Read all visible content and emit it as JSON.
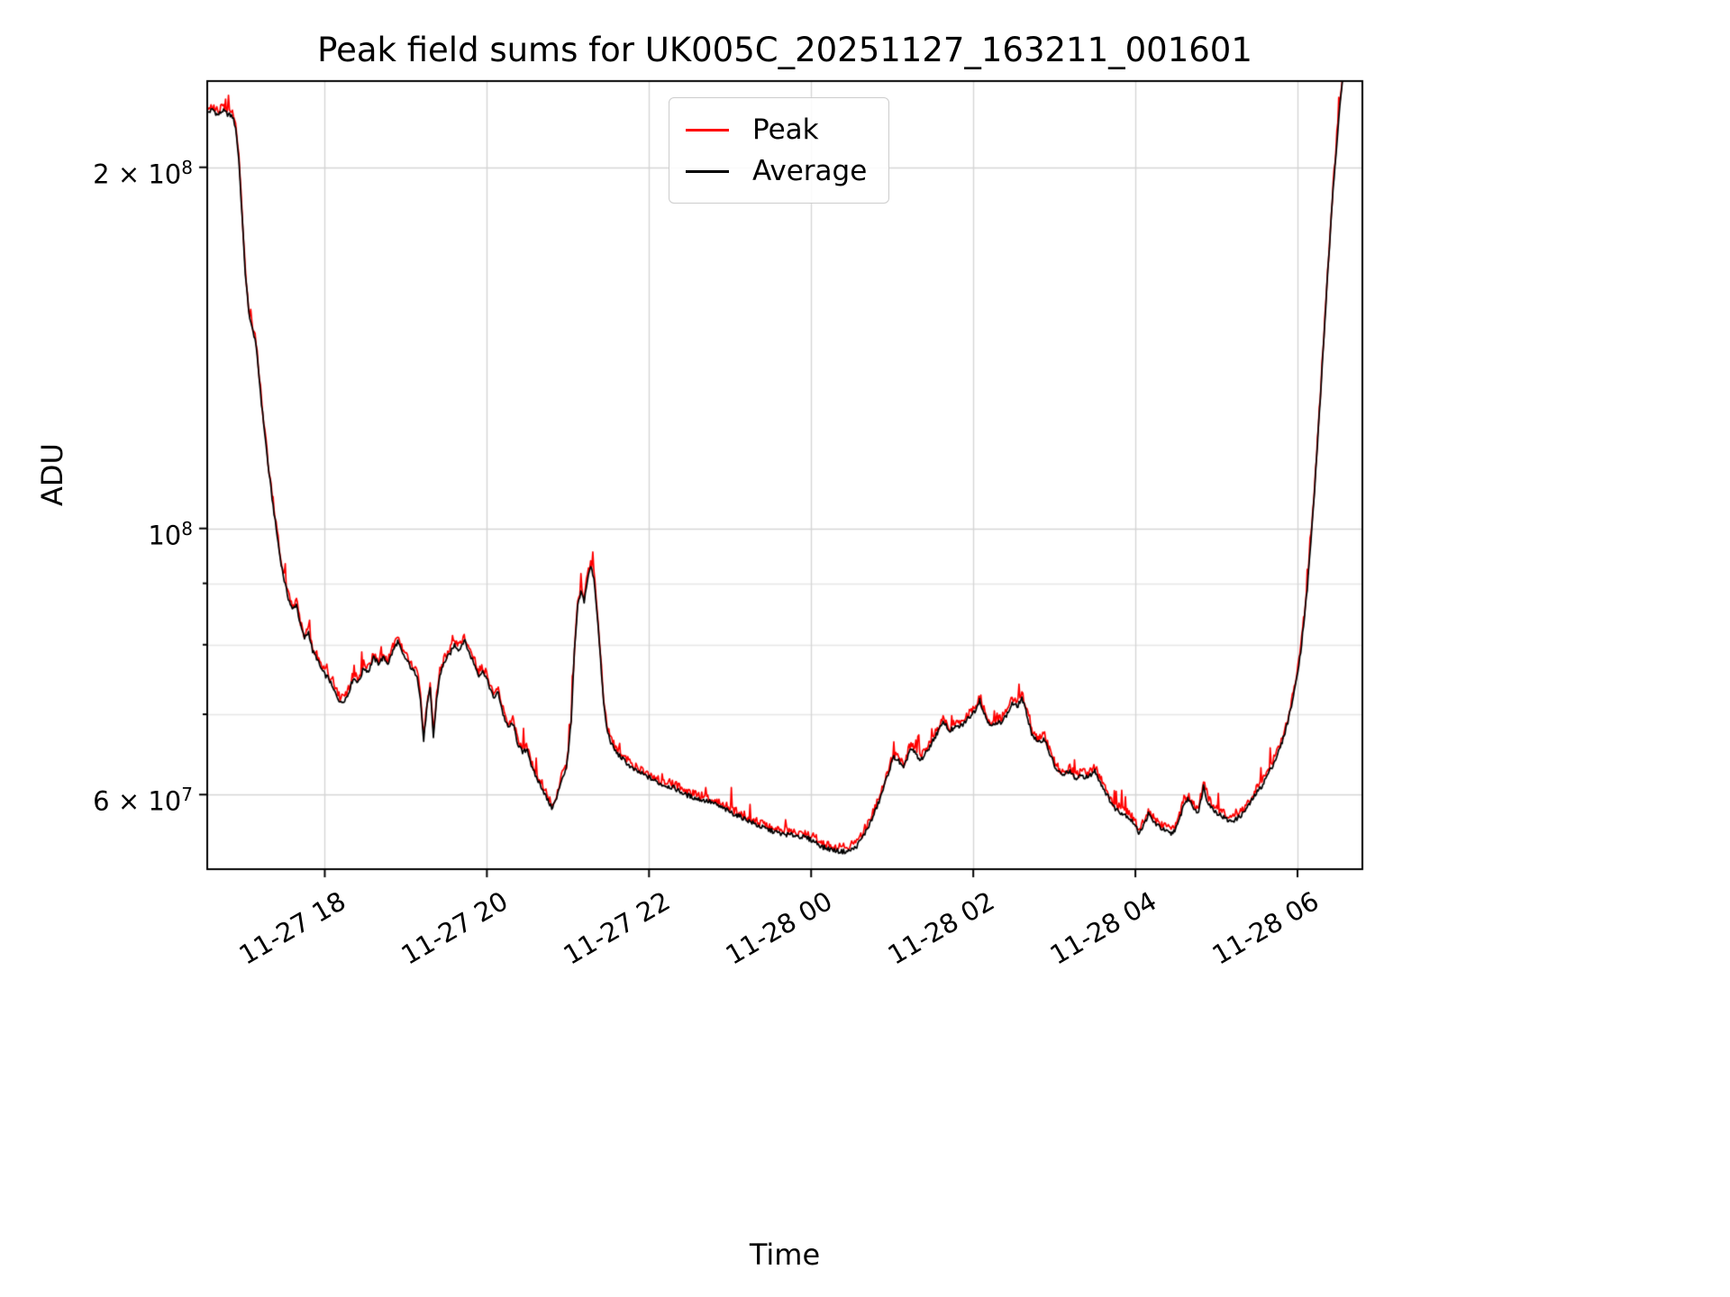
{
  "title": "Peak field sums for UK005C_20251127_163211_001601",
  "axes": {
    "xlabel": "Time",
    "ylabel": "ADU"
  },
  "legend": {
    "position": "upper center",
    "items": [
      {
        "label": "Peak",
        "color": "#ff0000"
      },
      {
        "label": "Average",
        "color": "#000000"
      }
    ]
  },
  "yticks": [
    {
      "value_scaled": 20,
      "text": "2 × 10",
      "sup": "8"
    },
    {
      "value_scaled": 10,
      "text": "10",
      "sup": "8"
    },
    {
      "value_scaled": 6,
      "text": "6 × 10",
      "sup": "7"
    }
  ],
  "xticks": [
    {
      "t": 18,
      "label": "11-27 18"
    },
    {
      "t": 20,
      "label": "11-27 20"
    },
    {
      "t": 22,
      "label": "11-27 22"
    },
    {
      "t": 24,
      "label": "11-28 00"
    },
    {
      "t": 26,
      "label": "11-28 02"
    },
    {
      "t": 28,
      "label": "11-28 04"
    },
    {
      "t": 30,
      "label": "11-28 06"
    }
  ],
  "chart_data": {
    "type": "line",
    "title": "Peak field sums for UK005C_20251127_163211_001601",
    "xlabel": "Time",
    "ylabel": "ADU",
    "yscale": "log",
    "grid": "both",
    "legend_position": "upper center",
    "x_unit": "hours since 2025-11-27 00:00 (tick labels MM-DD HH)",
    "xlim": [
      16.55,
      30.8
    ],
    "ylim": [
      52000000.0,
      236000000.0
    ],
    "values_scale": 10000000.0,
    "values_unit": "ADU (values below are in units of 1e7 ADU)",
    "grid_y_major_scaled": [
      6,
      10,
      20
    ],
    "grid_y_minor_scaled": [
      7,
      8,
      9
    ],
    "x": [
      16.55,
      16.62,
      16.68,
      16.74,
      16.8,
      16.86,
      16.9,
      16.94,
      16.98,
      17.02,
      17.06,
      17.1,
      17.14,
      17.18,
      17.22,
      17.26,
      17.3,
      17.35,
      17.4,
      17.45,
      17.5,
      17.55,
      17.6,
      17.65,
      17.7,
      17.75,
      17.8,
      17.85,
      17.9,
      17.95,
      18.0,
      18.05,
      18.1,
      18.15,
      18.2,
      18.28,
      18.35,
      18.42,
      18.48,
      18.54,
      18.6,
      18.66,
      18.72,
      18.78,
      18.84,
      18.9,
      18.96,
      19.02,
      19.08,
      19.14,
      19.18,
      19.22,
      19.26,
      19.3,
      19.34,
      19.38,
      19.42,
      19.48,
      19.54,
      19.6,
      19.66,
      19.72,
      19.78,
      19.84,
      19.9,
      19.96,
      20.02,
      20.08,
      20.14,
      20.2,
      20.26,
      20.32,
      20.38,
      20.44,
      20.5,
      20.56,
      20.62,
      20.68,
      20.74,
      20.8,
      20.86,
      20.92,
      20.98,
      21.04,
      21.08,
      21.12,
      21.16,
      21.2,
      21.24,
      21.28,
      21.32,
      21.36,
      21.4,
      21.44,
      21.48,
      21.54,
      21.6,
      21.7,
      21.8,
      21.9,
      22.0,
      22.15,
      22.3,
      22.45,
      22.6,
      22.75,
      22.9,
      23.05,
      23.2,
      23.35,
      23.5,
      23.65,
      23.8,
      23.95,
      24.05,
      24.15,
      24.25,
      24.35,
      24.45,
      24.55,
      24.65,
      24.75,
      24.85,
      24.95,
      25.02,
      25.08,
      25.14,
      25.22,
      25.28,
      25.34,
      25.42,
      25.5,
      25.58,
      25.64,
      25.7,
      25.78,
      25.86,
      25.94,
      26.02,
      26.08,
      26.12,
      26.18,
      26.26,
      26.34,
      26.42,
      26.48,
      26.54,
      26.6,
      26.66,
      26.72,
      26.8,
      26.88,
      26.94,
      27.02,
      27.1,
      27.18,
      27.26,
      27.34,
      27.42,
      27.5,
      27.58,
      27.66,
      27.74,
      27.82,
      27.9,
      27.98,
      28.04,
      28.1,
      28.16,
      28.22,
      28.28,
      28.36,
      28.44,
      28.52,
      28.6,
      28.66,
      28.72,
      28.78,
      28.84,
      28.88,
      28.94,
      29.0,
      29.08,
      29.16,
      29.24,
      29.32,
      29.4,
      29.48,
      29.56,
      29.64,
      29.72,
      29.8,
      29.88,
      29.96,
      30.04,
      30.12,
      30.2,
      30.28,
      30.36,
      30.44,
      30.52,
      30.58
    ],
    "series": [
      {
        "name": "Peak",
        "color": "#ff0000",
        "values": [
          22.31,
          22.46,
          22.21,
          22.41,
          22.26,
          22.16,
          21.71,
          20.4,
          18.29,
          16.38,
          15.28,
          14.77,
          14.47,
          13.67,
          12.76,
          12.06,
          11.36,
          10.65,
          10.05,
          9.5,
          9.1,
          8.79,
          8.59,
          8.69,
          8.34,
          8.14,
          8.24,
          7.94,
          7.84,
          7.69,
          7.59,
          7.54,
          7.39,
          7.29,
          7.19,
          7.29,
          7.54,
          7.49,
          7.69,
          7.64,
          7.84,
          7.76,
          7.84,
          7.76,
          7.94,
          8.09,
          7.89,
          7.79,
          7.66,
          7.59,
          7.24,
          6.68,
          7.14,
          7.39,
          6.73,
          7.24,
          7.59,
          7.79,
          7.89,
          8.04,
          7.96,
          8.12,
          7.92,
          7.76,
          7.59,
          7.64,
          7.46,
          7.26,
          7.34,
          7.04,
          6.85,
          6.91,
          6.65,
          6.53,
          6.58,
          6.33,
          6.21,
          6.11,
          5.98,
          5.88,
          5.98,
          6.21,
          6.33,
          6.93,
          7.94,
          8.64,
          8.89,
          8.74,
          9.1,
          9.35,
          9.15,
          8.54,
          7.84,
          7.19,
          6.83,
          6.63,
          6.53,
          6.43,
          6.33,
          6.28,
          6.23,
          6.15,
          6.11,
          6.03,
          5.98,
          5.95,
          5.88,
          5.81,
          5.75,
          5.68,
          5.63,
          5.59,
          5.58,
          5.55,
          5.51,
          5.45,
          5.43,
          5.41,
          5.41,
          5.45,
          5.58,
          5.75,
          5.98,
          6.28,
          6.48,
          6.43,
          6.33,
          6.58,
          6.53,
          6.43,
          6.53,
          6.68,
          6.83,
          6.93,
          6.81,
          6.85,
          6.88,
          6.98,
          7.09,
          7.24,
          7.09,
          6.93,
          6.88,
          6.93,
          7.04,
          7.19,
          7.14,
          7.26,
          7.04,
          6.78,
          6.65,
          6.71,
          6.53,
          6.33,
          6.25,
          6.31,
          6.21,
          6.25,
          6.23,
          6.31,
          6.15,
          6.01,
          5.88,
          5.83,
          5.79,
          5.71,
          5.61,
          5.68,
          5.81,
          5.73,
          5.68,
          5.63,
          5.59,
          5.68,
          5.93,
          5.98,
          5.88,
          5.83,
          6.13,
          5.98,
          5.88,
          5.83,
          5.78,
          5.73,
          5.75,
          5.81,
          5.91,
          6.03,
          6.13,
          6.28,
          6.43,
          6.63,
          6.93,
          7.34,
          7.94,
          8.94,
          10.55,
          12.86,
          15.88,
          19.3,
          22.61,
          24.62
        ]
      },
      {
        "name": "Average",
        "color": "#000000",
        "values": [
          22.2,
          22.35,
          22.1,
          22.3,
          22.15,
          22.05,
          21.6,
          20.3,
          18.2,
          16.3,
          15.2,
          14.7,
          14.4,
          13.6,
          12.7,
          12.0,
          11.3,
          10.6,
          10.0,
          9.45,
          9.05,
          8.75,
          8.55,
          8.65,
          8.3,
          8.1,
          8.2,
          7.9,
          7.8,
          7.65,
          7.55,
          7.5,
          7.35,
          7.25,
          7.15,
          7.25,
          7.5,
          7.45,
          7.65,
          7.6,
          7.8,
          7.72,
          7.8,
          7.72,
          7.9,
          8.05,
          7.85,
          7.75,
          7.62,
          7.55,
          7.2,
          6.65,
          7.1,
          7.35,
          6.7,
          7.2,
          7.55,
          7.75,
          7.85,
          8.0,
          7.92,
          8.08,
          7.88,
          7.72,
          7.55,
          7.6,
          7.42,
          7.22,
          7.3,
          7.0,
          6.82,
          6.88,
          6.62,
          6.5,
          6.55,
          6.3,
          6.18,
          6.08,
          5.95,
          5.85,
          5.95,
          6.18,
          6.3,
          6.9,
          7.9,
          8.6,
          8.85,
          8.7,
          9.05,
          9.3,
          9.1,
          8.5,
          7.8,
          7.15,
          6.8,
          6.6,
          6.5,
          6.4,
          6.3,
          6.25,
          6.2,
          6.12,
          6.08,
          6.0,
          5.95,
          5.92,
          5.85,
          5.78,
          5.72,
          5.65,
          5.6,
          5.56,
          5.55,
          5.52,
          5.48,
          5.42,
          5.4,
          5.38,
          5.38,
          5.42,
          5.55,
          5.72,
          5.95,
          6.25,
          6.45,
          6.4,
          6.3,
          6.55,
          6.5,
          6.4,
          6.5,
          6.65,
          6.8,
          6.9,
          6.78,
          6.82,
          6.85,
          6.95,
          7.05,
          7.2,
          7.05,
          6.9,
          6.85,
          6.9,
          7.0,
          7.15,
          7.1,
          7.22,
          7.0,
          6.75,
          6.62,
          6.68,
          6.5,
          6.3,
          6.22,
          6.28,
          6.18,
          6.22,
          6.2,
          6.28,
          6.12,
          5.98,
          5.85,
          5.8,
          5.76,
          5.68,
          5.58,
          5.65,
          5.78,
          5.7,
          5.65,
          5.6,
          5.56,
          5.65,
          5.9,
          5.95,
          5.85,
          5.8,
          6.1,
          5.95,
          5.85,
          5.8,
          5.75,
          5.7,
          5.72,
          5.78,
          5.88,
          6.0,
          6.1,
          6.25,
          6.4,
          6.6,
          6.9,
          7.3,
          7.9,
          8.9,
          10.5,
          12.8,
          15.8,
          19.2,
          22.5,
          24.5
        ]
      }
    ]
  }
}
